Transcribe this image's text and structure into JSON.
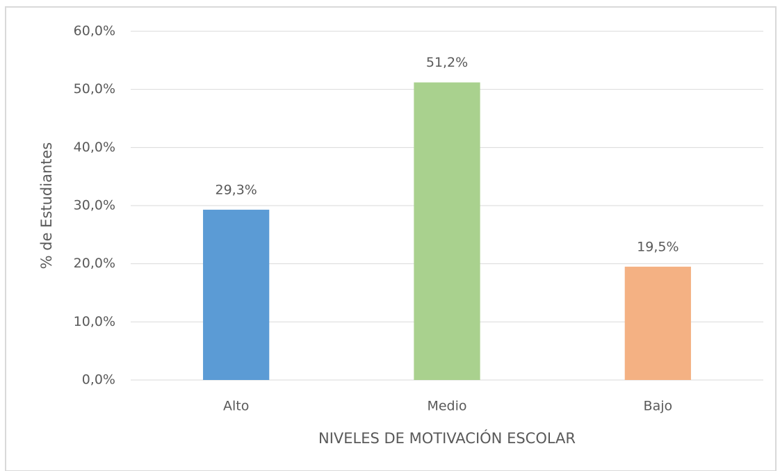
{
  "chart_data": {
    "type": "bar",
    "categories": [
      "Alto",
      "Medio",
      "Bajo"
    ],
    "values": [
      29.3,
      51.2,
      19.5
    ],
    "value_labels": [
      "29,3%",
      "51,2%",
      "19,5%"
    ],
    "colors": [
      "#5b9bd5",
      "#a9d18e",
      "#f4b183"
    ],
    "x_label": "NIVELES DE MOTIVACIÓN ESCOLAR",
    "y_label": "% de Estudiantes",
    "ylim": [
      0,
      60
    ],
    "yticks": [
      {
        "value": 0,
        "label": "0,0%"
      },
      {
        "value": 10,
        "label": "10,0%"
      },
      {
        "value": 20,
        "label": "20,0%"
      },
      {
        "value": 30,
        "label": "30,0%"
      },
      {
        "value": 40,
        "label": "40,0%"
      },
      {
        "value": 50,
        "label": "50,0%"
      },
      {
        "value": 60,
        "label": "60,0%"
      }
    ],
    "grid": true
  }
}
